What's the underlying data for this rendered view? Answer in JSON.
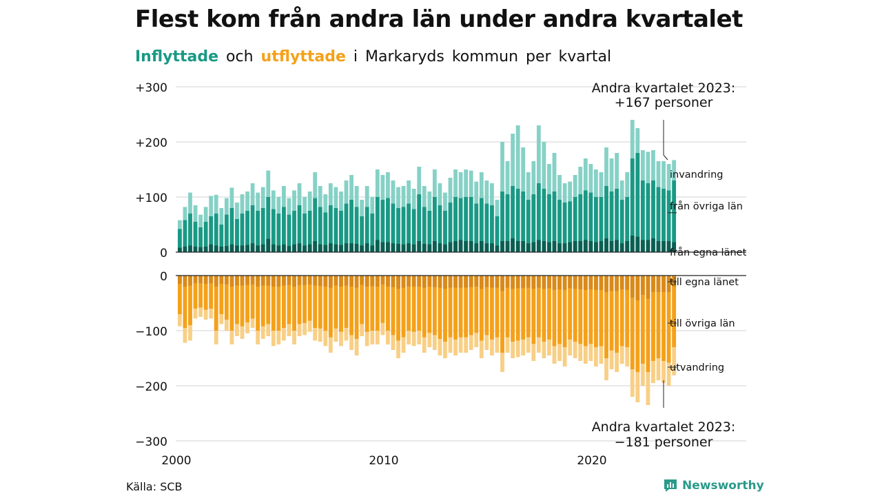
{
  "title": "Flest kom från andra län under andra kvartalet",
  "subtitle": {
    "in_label": "Inflyttade",
    "and_word": "och",
    "out_label": "utflyttade",
    "rest": "i Markaryds kommun per kvartal"
  },
  "source": "Källa: SCB",
  "brand": "Newsworthy",
  "colors": {
    "in_own": "#0c5e52",
    "in_other": "#1a9985",
    "in_immigration": "#86d1c6",
    "out_own": "#d88a1b",
    "out_other": "#f4a11a",
    "out_emigration": "#f8cf86",
    "grid": "#e0e0e0",
    "brand": "#2a9a8a"
  },
  "chart_data": {
    "type": "bar",
    "stacked": true,
    "x_start": "2000 Q1",
    "x_end": "2023 Q2",
    "x_ticks": [
      "2000",
      "2010",
      "2020"
    ],
    "top_panel": {
      "y_ticks": [
        "+300",
        "+200",
        "+100",
        "0"
      ],
      "ylim": [
        0,
        300
      ],
      "series_labels": [
        "invandring",
        "från övriga län",
        "från egna länet"
      ],
      "annotation": [
        "Andra kvartalet 2023:",
        "+167 personer"
      ],
      "last_value": 167
    },
    "bottom_panel": {
      "y_ticks": [
        "0",
        "−100",
        "−200",
        "−300"
      ],
      "ylim": [
        -300,
        0
      ],
      "series_labels": [
        "till egna länet",
        "till övriga län",
        "utvandring"
      ],
      "annotation": [
        "Andra kvartalet 2023:",
        "−181 personer"
      ],
      "last_value": -181
    },
    "in_totals": [
      58,
      82,
      108,
      85,
      68,
      82,
      102,
      104,
      80,
      98,
      117,
      90,
      105,
      110,
      125,
      108,
      118,
      148,
      112,
      100,
      120,
      98,
      112,
      125,
      100,
      110,
      145,
      120,
      105,
      125,
      118,
      110,
      130,
      140,
      120,
      95,
      120,
      100,
      150,
      140,
      145,
      130,
      118,
      120,
      130,
      115,
      155,
      120,
      110,
      150,
      125,
      108,
      135,
      150,
      145,
      150,
      148,
      128,
      145,
      130,
      125,
      95,
      200,
      165,
      215,
      230,
      190,
      145,
      165,
      230,
      200,
      160,
      180,
      140,
      125,
      128,
      140,
      155,
      170,
      160,
      150,
      145,
      190,
      170,
      180,
      130,
      145,
      240,
      225,
      185,
      182,
      185,
      165,
      165,
      160,
      167
    ],
    "in_other": [
      42,
      58,
      70,
      55,
      45,
      55,
      65,
      70,
      50,
      68,
      80,
      60,
      70,
      75,
      85,
      75,
      80,
      100,
      78,
      70,
      82,
      68,
      75,
      85,
      70,
      75,
      98,
      82,
      72,
      85,
      80,
      75,
      88,
      95,
      82,
      65,
      82,
      70,
      100,
      95,
      98,
      88,
      80,
      82,
      88,
      78,
      105,
      82,
      75,
      100,
      85,
      75,
      90,
      100,
      98,
      100,
      100,
      88,
      98,
      88,
      85,
      65,
      110,
      105,
      120,
      115,
      110,
      95,
      105,
      125,
      115,
      105,
      110,
      95,
      90,
      92,
      100,
      105,
      112,
      108,
      100,
      100,
      120,
      110,
      115,
      95,
      100,
      170,
      180,
      130,
      125,
      130,
      118,
      115,
      112,
      130
    ],
    "in_own": [
      8,
      10,
      12,
      10,
      9,
      10,
      14,
      12,
      10,
      11,
      14,
      12,
      12,
      13,
      16,
      12,
      14,
      24,
      14,
      12,
      14,
      11,
      14,
      16,
      12,
      14,
      20,
      14,
      13,
      16,
      14,
      13,
      16,
      16,
      15,
      12,
      16,
      12,
      22,
      18,
      18,
      16,
      15,
      14,
      16,
      14,
      20,
      15,
      14,
      20,
      16,
      14,
      18,
      20,
      22,
      20,
      20,
      16,
      20,
      16,
      16,
      12,
      20,
      20,
      25,
      20,
      20,
      16,
      18,
      22,
      20,
      18,
      20,
      16,
      16,
      18,
      20,
      20,
      22,
      20,
      18,
      20,
      25,
      20,
      22,
      16,
      20,
      30,
      28,
      22,
      22,
      25,
      20,
      20,
      20,
      18
    ],
    "out_totals": [
      -92,
      -122,
      -118,
      -78,
      -75,
      -80,
      -78,
      -125,
      -88,
      -100,
      -125,
      -110,
      -115,
      -105,
      -95,
      -125,
      -115,
      -110,
      -128,
      -125,
      -118,
      -110,
      -125,
      -110,
      -108,
      -102,
      -118,
      -120,
      -128,
      -140,
      -120,
      -128,
      -118,
      -135,
      -145,
      -110,
      -128,
      -125,
      -125,
      -108,
      -125,
      -135,
      -150,
      -140,
      -125,
      -128,
      -125,
      -140,
      -130,
      -135,
      -145,
      -150,
      -140,
      -145,
      -140,
      -140,
      -135,
      -130,
      -150,
      -135,
      -145,
      -140,
      -175,
      -140,
      -150,
      -148,
      -145,
      -140,
      -155,
      -140,
      -150,
      -145,
      -160,
      -155,
      -165,
      -145,
      -150,
      -155,
      -160,
      -155,
      -165,
      -160,
      -190,
      -170,
      -175,
      -160,
      -165,
      -220,
      -230,
      -200,
      -235,
      -195,
      -190,
      -195,
      -200,
      -181
    ],
    "out_other": [
      -70,
      -95,
      -90,
      -60,
      -58,
      -62,
      -60,
      -100,
      -70,
      -80,
      -100,
      -88,
      -92,
      -85,
      -78,
      -100,
      -92,
      -88,
      -100,
      -100,
      -95,
      -88,
      -100,
      -88,
      -86,
      -82,
      -95,
      -96,
      -100,
      -112,
      -96,
      -102,
      -95,
      -108,
      -115,
      -88,
      -102,
      -100,
      -100,
      -86,
      -100,
      -108,
      -118,
      -112,
      -100,
      -102,
      -100,
      -112,
      -104,
      -108,
      -115,
      -120,
      -112,
      -116,
      -112,
      -112,
      -108,
      -104,
      -118,
      -108,
      -116,
      -112,
      -140,
      -112,
      -120,
      -118,
      -116,
      -112,
      -124,
      -112,
      -120,
      -116,
      -128,
      -124,
      -130,
      -116,
      -120,
      -124,
      -128,
      -124,
      -130,
      -128,
      -150,
      -136,
      -140,
      -128,
      -130,
      -170,
      -175,
      -160,
      -175,
      -155,
      -150,
      -155,
      -158,
      -130
    ],
    "out_own": [
      -15,
      -20,
      -18,
      -14,
      -14,
      -15,
      -14,
      -20,
      -15,
      -16,
      -20,
      -18,
      -18,
      -17,
      -16,
      -20,
      -18,
      -18,
      -20,
      -20,
      -18,
      -17,
      -20,
      -17,
      -17,
      -16,
      -18,
      -19,
      -20,
      -22,
      -18,
      -20,
      -18,
      -20,
      -22,
      -17,
      -20,
      -19,
      -20,
      -16,
      -20,
      -21,
      -24,
      -22,
      -20,
      -20,
      -20,
      -22,
      -20,
      -21,
      -22,
      -24,
      -22,
      -22,
      -22,
      -22,
      -21,
      -20,
      -24,
      -21,
      -22,
      -22,
      -28,
      -22,
      -24,
      -23,
      -23,
      -22,
      -24,
      -22,
      -24,
      -23,
      -26,
      -25,
      -26,
      -23,
      -24,
      -25,
      -26,
      -25,
      -26,
      -26,
      -30,
      -28,
      -28,
      -25,
      -26,
      -40,
      -45,
      -35,
      -42,
      -30,
      -30,
      -30,
      -30,
      -20
    ]
  }
}
